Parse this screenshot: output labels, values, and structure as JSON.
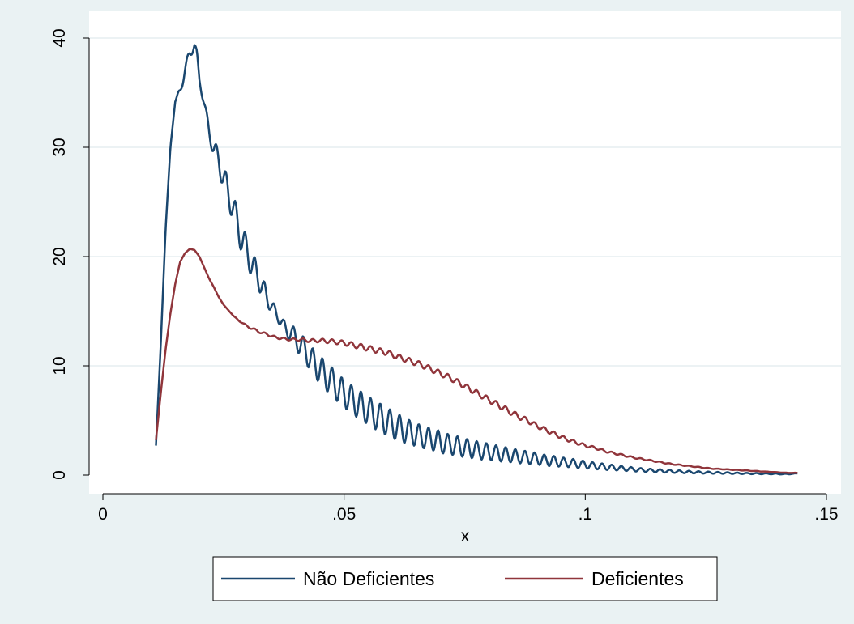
{
  "chart_data": {
    "type": "line",
    "title": "",
    "xlabel": "x",
    "ylabel": "",
    "xlim": [
      0,
      0.15
    ],
    "ylim": [
      0,
      40
    ],
    "xticks": [
      {
        "value": 0,
        "label": "0"
      },
      {
        "value": 0.05,
        "label": ".05"
      },
      {
        "value": 0.1,
        "label": ".1"
      },
      {
        "value": 0.15,
        "label": ".15"
      }
    ],
    "yticks": [
      {
        "value": 0,
        "label": "0"
      },
      {
        "value": 10,
        "label": "10"
      },
      {
        "value": 20,
        "label": "20"
      },
      {
        "value": 30,
        "label": "30"
      },
      {
        "value": 40,
        "label": "40"
      }
    ],
    "grid": "horizontal",
    "legend_position": "bottom",
    "colors": {
      "background": "#eaf2f3",
      "plot": "#ffffff",
      "grid": "#e6eef0"
    },
    "series": [
      {
        "name": "Não Deficientes",
        "color": "#1a476f",
        "x": [
          0.011,
          0.012,
          0.013,
          0.014,
          0.015,
          0.016,
          0.017,
          0.018,
          0.019,
          0.0195,
          0.02,
          0.021,
          0.022,
          0.023,
          0.024,
          0.025,
          0.026,
          0.027,
          0.028,
          0.029,
          0.03,
          0.031,
          0.032,
          0.033,
          0.034,
          0.035,
          0.036,
          0.037,
          0.038,
          0.039,
          0.04,
          0.041,
          0.042,
          0.043,
          0.044,
          0.045,
          0.046,
          0.047,
          0.048,
          0.049,
          0.05,
          0.051,
          0.052,
          0.053,
          0.054,
          0.055,
          0.056,
          0.057,
          0.058,
          0.059,
          0.06,
          0.061,
          0.062,
          0.063,
          0.064,
          0.065,
          0.066,
          0.067,
          0.068,
          0.069,
          0.07,
          0.071,
          0.072,
          0.073,
          0.074,
          0.075,
          0.076,
          0.077,
          0.078,
          0.079,
          0.08,
          0.081,
          0.082,
          0.083,
          0.084,
          0.085,
          0.086,
          0.087,
          0.088,
          0.089,
          0.09,
          0.091,
          0.092,
          0.093,
          0.094,
          0.095,
          0.096,
          0.097,
          0.098,
          0.099,
          0.1,
          0.101,
          0.102,
          0.103,
          0.104,
          0.105,
          0.106,
          0.107,
          0.108,
          0.109,
          0.11,
          0.112,
          0.114,
          0.116,
          0.118,
          0.12,
          0.122,
          0.124,
          0.126,
          0.128,
          0.13,
          0.132,
          0.134,
          0.136,
          0.138,
          0.14,
          0.142,
          0.144
        ],
        "y": [
          2.7,
          12,
          22.5,
          30,
          34.2,
          35.2,
          37,
          38.6,
          39.4,
          38.5,
          36.2,
          34,
          31.5,
          29.8,
          28.8,
          27.2,
          25.8,
          24.5,
          22.8,
          21.4,
          20.3,
          19.2,
          18.3,
          17.3,
          16.2,
          15.5,
          14.7,
          14,
          13.3,
          13,
          12.5,
          11.8,
          11.5,
          10.6,
          10.2,
          9.6,
          9.2,
          8.7,
          8.4,
          7.8,
          7.5,
          7.1,
          6.8,
          6.5,
          6.2,
          5.9,
          5.6,
          5.4,
          5.1,
          4.9,
          4.6,
          4.4,
          4.2,
          4.0,
          3.9,
          3.7,
          3.5,
          3.4,
          3.3,
          3.2,
          3.0,
          2.9,
          2.8,
          2.7,
          2.6,
          2.5,
          2.4,
          2.35,
          2.25,
          2.2,
          2.1,
          2.05,
          2.0,
          1.9,
          1.85,
          1.8,
          1.7,
          1.65,
          1.6,
          1.55,
          1.5,
          1.4,
          1.35,
          1.3,
          1.25,
          1.2,
          1.15,
          1.1,
          1.05,
          1.0,
          0.95,
          0.9,
          0.85,
          0.8,
          0.75,
          0.72,
          0.68,
          0.64,
          0.6,
          0.56,
          0.52,
          0.46,
          0.42,
          0.38,
          0.34,
          0.3,
          0.27,
          0.24,
          0.22,
          0.2,
          0.18,
          0.16,
          0.14,
          0.13,
          0.12,
          0.1,
          0.09,
          0.15
        ],
        "oscillation_amplitude": [
          0,
          0,
          0,
          0,
          0,
          0.4,
          0.5,
          0.5,
          0.4,
          0.3,
          0.3,
          0.4,
          0.6,
          0.9,
          1.0,
          1.2,
          1.3,
          1.3,
          1.4,
          1.4,
          1.3,
          1.2,
          1.1,
          1.0,
          0.8,
          0.6,
          0.5,
          0.5,
          0.6,
          0.8,
          0.9,
          1.0,
          1.1,
          1.2,
          1.2,
          1.3,
          1.3,
          1.3,
          1.3,
          1.3,
          1.3,
          1.3,
          1.3,
          1.3,
          1.3,
          1.3,
          1.3,
          1.3,
          1.3,
          1.3,
          1.2,
          1.2,
          1.2,
          1.1,
          1.1,
          1.1,
          1.0,
          1.0,
          1.0,
          1.0,
          1.0,
          0.95,
          0.9,
          0.9,
          0.9,
          0.85,
          0.85,
          0.8,
          0.8,
          0.8,
          0.75,
          0.7,
          0.7,
          0.7,
          0.65,
          0.65,
          0.6,
          0.6,
          0.6,
          0.55,
          0.55,
          0.5,
          0.5,
          0.5,
          0.45,
          0.45,
          0.4,
          0.4,
          0.4,
          0.35,
          0.35,
          0.3,
          0.3,
          0.3,
          0.28,
          0.26,
          0.24,
          0.22,
          0.2,
          0.2,
          0.18,
          0.16,
          0.15,
          0.14,
          0.13,
          0.12,
          0.11,
          0.1,
          0.09,
          0.08,
          0.07,
          0.06,
          0.05,
          0.05,
          0.04,
          0.04,
          0.03,
          0.02
        ],
        "oscillation_period": 0.002
      },
      {
        "name": "Deficientes",
        "color": "#90353b",
        "x": [
          0.011,
          0.012,
          0.013,
          0.014,
          0.015,
          0.016,
          0.017,
          0.018,
          0.019,
          0.02,
          0.021,
          0.022,
          0.023,
          0.024,
          0.025,
          0.026,
          0.027,
          0.028,
          0.029,
          0.03,
          0.031,
          0.032,
          0.033,
          0.034,
          0.035,
          0.036,
          0.037,
          0.038,
          0.039,
          0.04,
          0.041,
          0.042,
          0.043,
          0.044,
          0.045,
          0.046,
          0.047,
          0.048,
          0.049,
          0.05,
          0.051,
          0.052,
          0.053,
          0.054,
          0.055,
          0.056,
          0.057,
          0.058,
          0.059,
          0.06,
          0.062,
          0.064,
          0.066,
          0.068,
          0.07,
          0.072,
          0.074,
          0.076,
          0.078,
          0.08,
          0.082,
          0.084,
          0.086,
          0.088,
          0.09,
          0.092,
          0.094,
          0.096,
          0.098,
          0.1,
          0.102,
          0.104,
          0.106,
          0.108,
          0.11,
          0.112,
          0.114,
          0.116,
          0.118,
          0.12,
          0.122,
          0.124,
          0.126,
          0.128,
          0.13,
          0.132,
          0.134,
          0.136,
          0.138,
          0.14,
          0.142,
          0.144
        ],
        "y": [
          3.2,
          7.5,
          11.5,
          14.8,
          17.5,
          19.5,
          20.3,
          20.7,
          20.6,
          20.0,
          19.0,
          18.0,
          17.2,
          16.3,
          15.6,
          15.1,
          14.6,
          14.2,
          13.9,
          13.6,
          13.4,
          13.2,
          13.0,
          12.9,
          12.7,
          12.6,
          12.5,
          12.45,
          12.4,
          12.4,
          12.4,
          12.35,
          12.3,
          12.3,
          12.3,
          12.3,
          12.25,
          12.2,
          12.15,
          12.1,
          12.0,
          11.9,
          11.8,
          11.7,
          11.6,
          11.5,
          11.4,
          11.3,
          11.2,
          11.0,
          10.7,
          10.4,
          10.1,
          9.7,
          9.3,
          8.9,
          8.4,
          7.9,
          7.4,
          6.9,
          6.4,
          5.9,
          5.4,
          5.0,
          4.5,
          4.1,
          3.7,
          3.3,
          3.0,
          2.7,
          2.5,
          2.2,
          2.0,
          1.8,
          1.6,
          1.45,
          1.3,
          1.15,
          1.0,
          0.9,
          0.8,
          0.7,
          0.6,
          0.55,
          0.5,
          0.45,
          0.4,
          0.35,
          0.3,
          0.25,
          0.2,
          0.2
        ],
        "oscillation_amplitude": [
          0,
          0,
          0,
          0,
          0,
          0,
          0,
          0,
          0,
          0,
          0,
          0,
          0,
          0,
          0,
          0,
          0,
          0.05,
          0.05,
          0.08,
          0.1,
          0.1,
          0.1,
          0.1,
          0.1,
          0.1,
          0.1,
          0.1,
          0.1,
          0.12,
          0.12,
          0.15,
          0.15,
          0.15,
          0.15,
          0.2,
          0.2,
          0.2,
          0.2,
          0.22,
          0.22,
          0.22,
          0.25,
          0.25,
          0.25,
          0.25,
          0.25,
          0.25,
          0.25,
          0.25,
          0.25,
          0.25,
          0.25,
          0.25,
          0.25,
          0.25,
          0.25,
          0.25,
          0.25,
          0.25,
          0.25,
          0.25,
          0.25,
          0.22,
          0.2,
          0.2,
          0.18,
          0.16,
          0.15,
          0.12,
          0.1,
          0.1,
          0.08,
          0.08,
          0.06,
          0.06,
          0.05,
          0.05,
          0.04,
          0.04,
          0.03,
          0.03,
          0.03,
          0.02,
          0.02,
          0.02,
          0.02,
          0.02,
          0.01,
          0.01,
          0.01,
          0.01
        ],
        "oscillation_period": 0.002
      }
    ]
  }
}
